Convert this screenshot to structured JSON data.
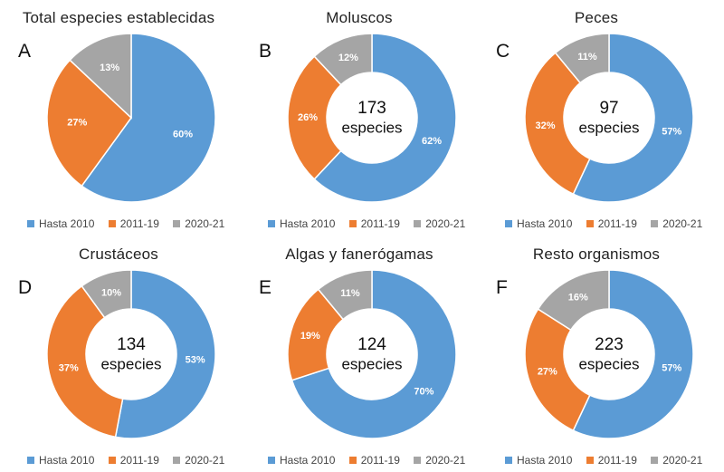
{
  "colors": {
    "hasta_2010": "#5b9bd5",
    "r2011_19": "#ed7d31",
    "r2020_21": "#a5a5a5"
  },
  "legend": [
    "Hasta 2010",
    "2011-19",
    "2020-21"
  ],
  "chart_data": [
    {
      "type": "pie",
      "letter": "A",
      "title": "Total especies establecidas",
      "center_number": "",
      "center_text": "",
      "categories": [
        "Hasta 2010",
        "2011-19",
        "2020-21"
      ],
      "values": [
        60,
        27,
        13
      ],
      "labels": [
        "60%",
        "27%",
        "13%"
      ],
      "legend_position": "bottom"
    },
    {
      "type": "pie",
      "letter": "B",
      "title": "Moluscos",
      "center_number": "173",
      "center_text": "especies",
      "categories": [
        "Hasta 2010",
        "2011-19",
        "2020-21"
      ],
      "values": [
        62,
        26,
        12
      ],
      "labels": [
        "62%",
        "26%",
        "12%"
      ],
      "legend_position": "bottom"
    },
    {
      "type": "pie",
      "letter": "C",
      "title": "Peces",
      "center_number": "97",
      "center_text": "especies",
      "categories": [
        "Hasta 2010",
        "2011-19",
        "2020-21"
      ],
      "values": [
        57,
        32,
        11
      ],
      "labels": [
        "57%",
        "32%",
        "11%"
      ],
      "legend_position": "bottom"
    },
    {
      "type": "pie",
      "letter": "D",
      "title": "Crustáceos",
      "center_number": "134",
      "center_text": "especies",
      "categories": [
        "Hasta 2010",
        "2011-19",
        "2020-21"
      ],
      "values": [
        53,
        37,
        10
      ],
      "labels": [
        "53%",
        "37%",
        "10%"
      ],
      "legend_position": "bottom"
    },
    {
      "type": "pie",
      "letter": "E",
      "title": "Algas y fanerógamas",
      "center_number": "124",
      "center_text": "especies",
      "categories": [
        "Hasta 2010",
        "2011-19",
        "2020-21"
      ],
      "values": [
        70,
        19,
        11
      ],
      "labels": [
        "70%",
        "19%",
        "11%"
      ],
      "legend_position": "bottom"
    },
    {
      "type": "pie",
      "letter": "F",
      "title": "Resto organismos",
      "center_number": "223",
      "center_text": "especies",
      "categories": [
        "Hasta 2010",
        "2011-19",
        "2020-21"
      ],
      "values": [
        57,
        27,
        16
      ],
      "labels": [
        "57%",
        "27%",
        "16%"
      ],
      "legend_position": "bottom"
    }
  ]
}
